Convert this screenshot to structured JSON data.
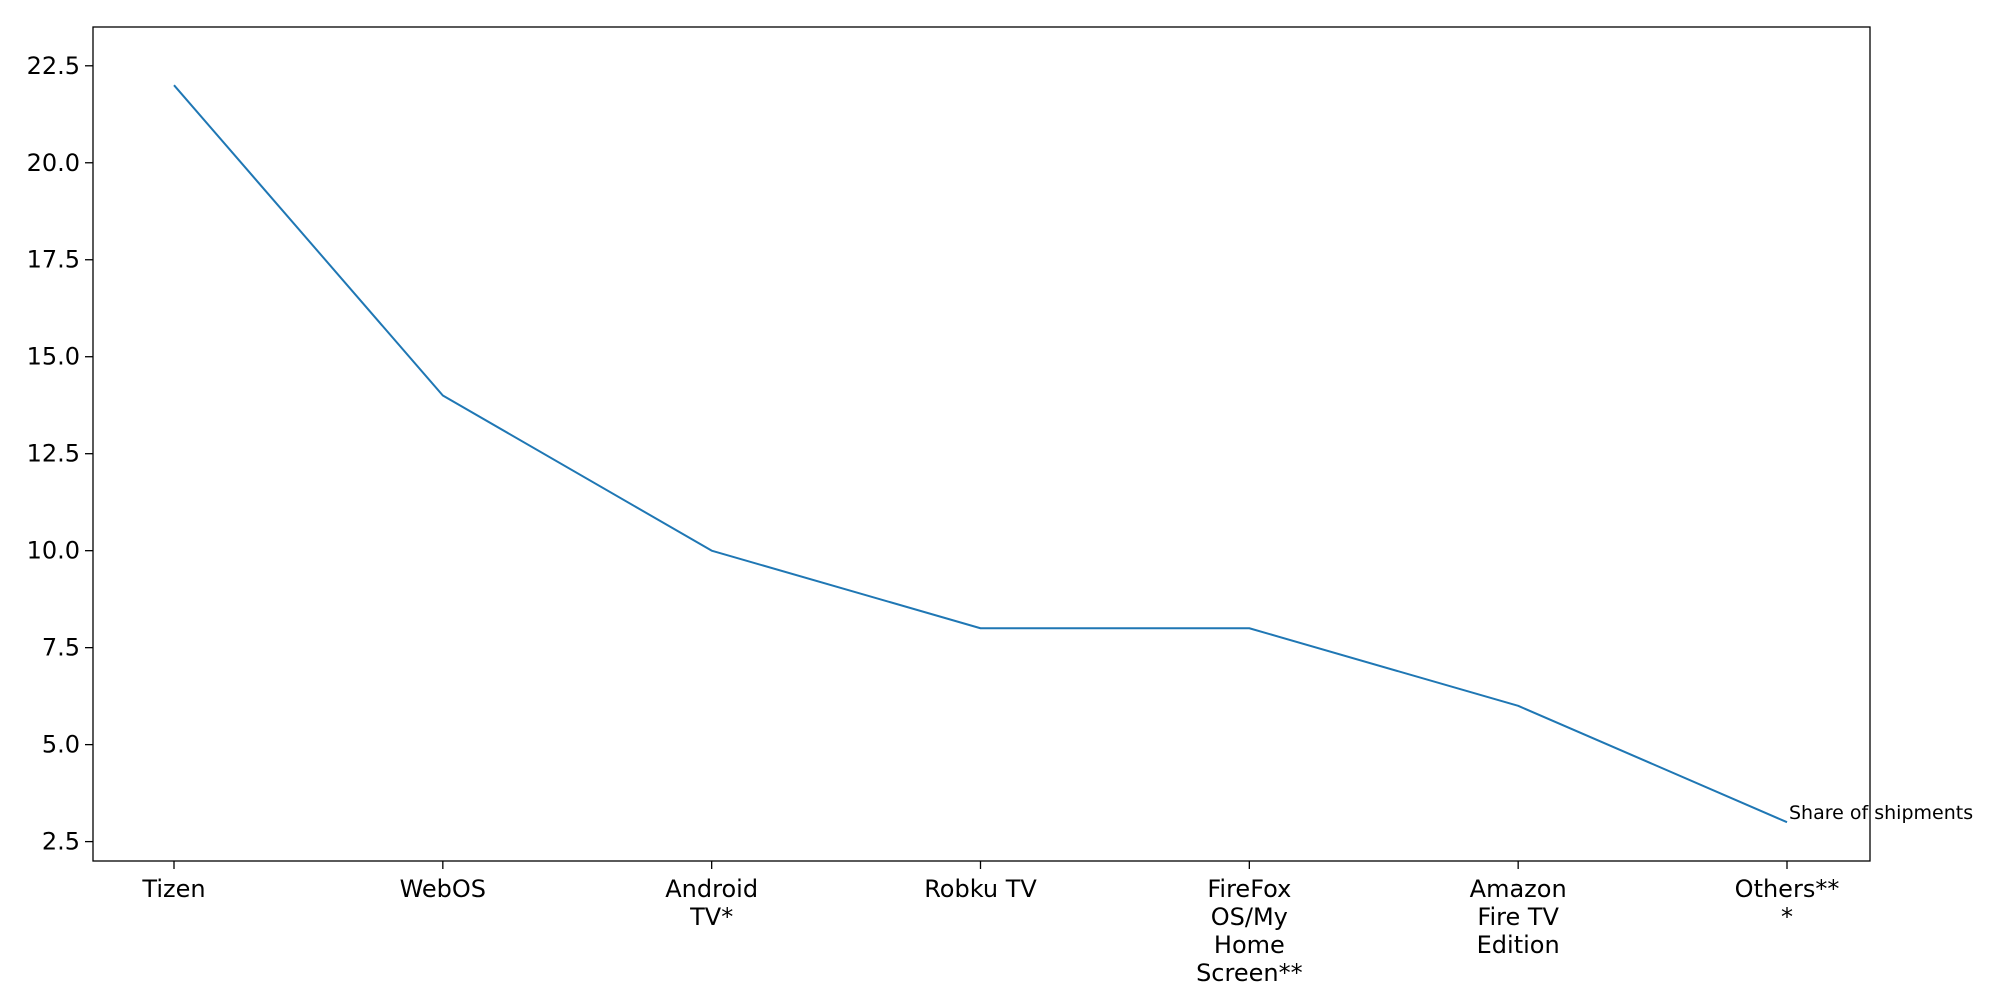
{
  "chart_data": {
    "type": "line",
    "title": "",
    "xlabel": "",
    "ylabel": "",
    "categories": [
      [
        "Tizen"
      ],
      [
        "WebOS"
      ],
      [
        "Android",
        "TV*"
      ],
      [
        "Robku TV"
      ],
      [
        "FireFox",
        "OS/My",
        "Home",
        "Screen**"
      ],
      [
        "Amazon",
        "Fire TV",
        "Edition"
      ],
      [
        "Others**",
        "*"
      ]
    ],
    "series": [
      {
        "values": [
          22,
          14,
          10,
          8,
          8,
          6,
          3
        ],
        "color": "#1f77b4"
      }
    ],
    "annotation": {
      "text": "Share of shipments",
      "category_index": 6
    },
    "ylim": [
      2.0,
      23.5
    ],
    "yticks": [
      "2.5",
      "5.0",
      "7.5",
      "10.0",
      "12.5",
      "15.0",
      "17.5",
      "20.0",
      "22.5"
    ],
    "grid": false,
    "legend": "none"
  }
}
